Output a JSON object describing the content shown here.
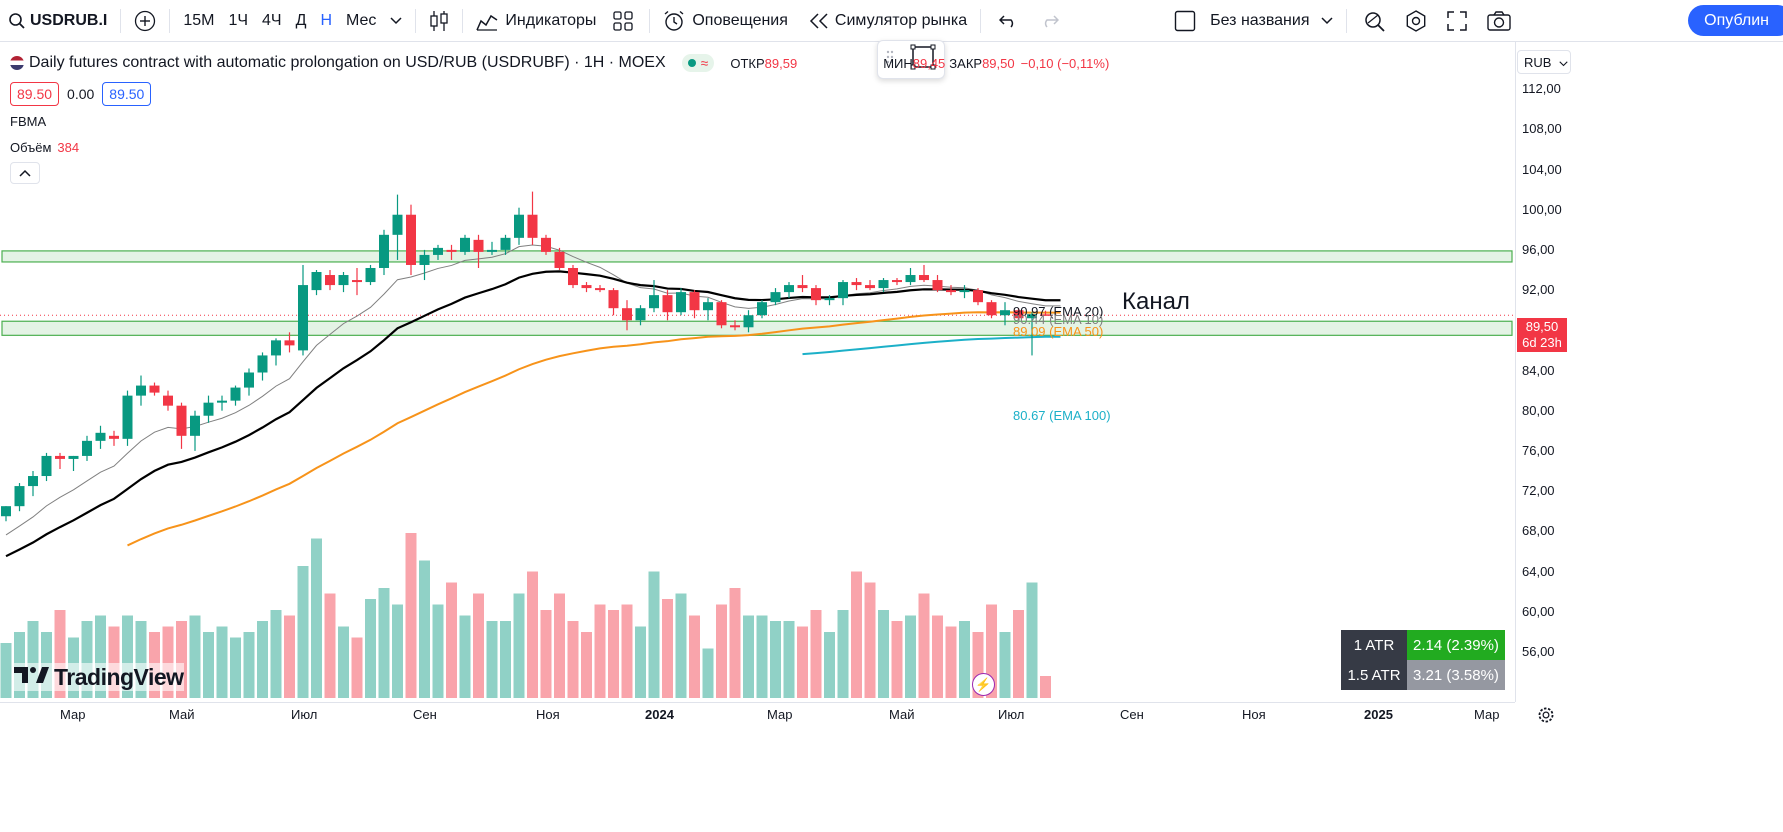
{
  "toolbar": {
    "symbol": "USDRUB.I",
    "intervals": [
      "15М",
      "1Ч",
      "4Ч",
      "Д",
      "Н",
      "Мес"
    ],
    "active_interval": "Н",
    "indicators_label": "Индикаторы",
    "alerts_label": "Оповещения",
    "replay_label": "Симулятор рынка",
    "layout_name": "Без названия",
    "publish_label": "Опублин"
  },
  "legend": {
    "title": "Daily futures contract with automatic prolongation on USD/RUB (USDRUBF) · 1Н · MOEX",
    "open_label": "ОТКР",
    "open_value": "89,59",
    "low_label": "МИН",
    "low_value": "89,45",
    "close_label": "ЗАКР",
    "close_value": "89,50",
    "change": "−0,10 (−0,11%)",
    "bid": "89.50",
    "spread": "0.00",
    "ask": "89.50",
    "indicator_1": "FBMA",
    "volume_label": "Объём",
    "volume_value": "384"
  },
  "price_axis": {
    "currency": "RUB",
    "ticks": [
      "112,00",
      "108,00",
      "104,00",
      "100,00",
      "96,00",
      "92,00",
      "88,00",
      "84,00",
      "80,00",
      "76,00",
      "72,00",
      "68,00",
      "64,00",
      "60,00",
      "56,00"
    ],
    "current_price": "89,50",
    "countdown": "6d 23h"
  },
  "time_axis": {
    "ticks": [
      {
        "label": "Мар",
        "bold": false
      },
      {
        "label": "Май",
        "bold": false
      },
      {
        "label": "Июл",
        "bold": false
      },
      {
        "label": "Сен",
        "bold": false
      },
      {
        "label": "Ноя",
        "bold": false
      },
      {
        "label": "2024",
        "bold": true
      },
      {
        "label": "Мар",
        "bold": false
      },
      {
        "label": "Май",
        "bold": false
      },
      {
        "label": "Июл",
        "bold": false
      },
      {
        "label": "Сен",
        "bold": false
      },
      {
        "label": "Ноя",
        "bold": false
      },
      {
        "label": "2025",
        "bold": true
      },
      {
        "label": "Мар",
        "bold": false
      }
    ]
  },
  "annotations": {
    "channel_text": "Канал"
  },
  "ema_labels": {
    "ema20": "90.97 (EMA 20)",
    "ema10": "90.44 (EMA 10)",
    "ema50": "89.09 (EMA 50)",
    "ema100": "80.67 (EMA 100)"
  },
  "atr": {
    "rows": [
      {
        "label": "1 ATR",
        "value": "2.14 (2.39%)"
      },
      {
        "label": "1.5 ATR",
        "value": "3.21 (3.58%)"
      }
    ]
  },
  "brand": {
    "name": "TradingView"
  },
  "colors": {
    "up": "#089981",
    "down": "#f23645",
    "ema10": "#808080",
    "ema20": "#000000",
    "ema50": "#f7931a",
    "ema100": "#1cb0c8",
    "zone": "#4caf50"
  },
  "chart_data": {
    "type": "candlestick",
    "title": "USDRUBF 1W",
    "ylim": [
      54,
      114
    ],
    "zones": [
      [
        94.8,
        95.9
      ],
      [
        87.5,
        88.9
      ]
    ],
    "candles": [
      [
        69.5,
        70.5,
        69.0,
        70.5,
        10
      ],
      [
        70.5,
        72.8,
        70.0,
        72.5,
        12
      ],
      [
        72.5,
        74.0,
        71.5,
        73.5,
        14
      ],
      [
        73.5,
        75.8,
        73.0,
        75.5,
        12
      ],
      [
        75.5,
        75.8,
        74.2,
        75.2,
        16
      ],
      [
        75.2,
        75.5,
        74.0,
        75.5,
        11
      ],
      [
        75.5,
        77.5,
        75.0,
        77.0,
        14
      ],
      [
        77.0,
        78.5,
        76.2,
        77.8,
        15
      ],
      [
        77.5,
        78.0,
        76.5,
        77.2,
        13
      ],
      [
        77.2,
        82.0,
        76.5,
        81.5,
        15
      ],
      [
        81.5,
        83.5,
        80.5,
        82.5,
        14
      ],
      [
        82.5,
        82.8,
        81.5,
        81.8,
        12
      ],
      [
        81.5,
        82.0,
        80.0,
        80.5,
        13
      ],
      [
        80.5,
        80.8,
        76.2,
        77.5,
        14
      ],
      [
        77.5,
        80.0,
        76.0,
        79.5,
        15
      ],
      [
        79.5,
        81.5,
        78.8,
        80.8,
        12
      ],
      [
        80.8,
        81.5,
        80.0,
        81.0,
        13
      ],
      [
        81.0,
        82.5,
        80.5,
        82.3,
        11
      ],
      [
        82.3,
        84.2,
        81.5,
        83.8,
        12
      ],
      [
        83.8,
        85.8,
        83.0,
        85.5,
        14
      ],
      [
        85.5,
        87.2,
        84.5,
        87.0,
        16
      ],
      [
        87.0,
        87.8,
        85.8,
        86.5,
        15
      ],
      [
        86.0,
        94.5,
        85.5,
        92.5,
        24
      ],
      [
        92.0,
        94.0,
        91.5,
        93.8,
        29
      ],
      [
        93.5,
        94.0,
        92.0,
        92.5,
        19
      ],
      [
        92.5,
        93.8,
        91.8,
        93.5,
        13
      ],
      [
        93.0,
        94.2,
        91.5,
        92.8,
        11
      ],
      [
        92.8,
        94.5,
        92.5,
        94.2,
        18
      ],
      [
        94.2,
        98.0,
        93.5,
        97.5,
        20
      ],
      [
        97.5,
        101.5,
        95.0,
        99.5,
        17
      ],
      [
        99.5,
        100.5,
        93.5,
        94.5,
        30
      ],
      [
        94.5,
        96.0,
        93.0,
        95.5,
        25
      ],
      [
        95.5,
        96.5,
        95.0,
        96.2,
        17
      ],
      [
        96.0,
        96.5,
        95.0,
        95.8,
        21
      ],
      [
        95.8,
        97.5,
        95.5,
        97.2,
        15
      ],
      [
        97.0,
        97.5,
        94.2,
        95.8,
        19
      ],
      [
        95.8,
        96.8,
        95.5,
        96.0,
        14
      ],
      [
        96.0,
        97.5,
        95.5,
        97.2,
        14
      ],
      [
        97.2,
        100.2,
        96.5,
        99.5,
        19
      ],
      [
        99.5,
        101.8,
        96.5,
        97.2,
        23
      ],
      [
        97.2,
        97.5,
        95.5,
        95.8,
        16
      ],
      [
        95.8,
        96.2,
        94.0,
        94.2,
        19
      ],
      [
        94.2,
        94.5,
        92.2,
        92.5,
        14
      ],
      [
        92.5,
        92.8,
        91.8,
        92.2,
        12
      ],
      [
        92.2,
        92.5,
        91.8,
        92.0,
        17
      ],
      [
        92.0,
        92.2,
        89.5,
        90.2,
        16
      ],
      [
        90.2,
        91.0,
        88.0,
        89.0,
        17
      ],
      [
        89.0,
        90.5,
        88.5,
        90.2,
        13
      ],
      [
        90.2,
        93.0,
        89.8,
        91.5,
        23
      ],
      [
        91.5,
        92.0,
        89.0,
        89.8,
        18
      ],
      [
        89.8,
        92.2,
        89.5,
        91.8,
        19
      ],
      [
        91.8,
        92.0,
        89.2,
        90.0,
        15
      ],
      [
        90.0,
        91.2,
        89.0,
        90.8,
        9
      ],
      [
        90.8,
        91.0,
        88.2,
        88.5,
        17
      ],
      [
        88.5,
        89.0,
        88.0,
        88.3,
        20
      ],
      [
        88.3,
        90.0,
        87.8,
        89.5,
        15
      ],
      [
        89.5,
        91.0,
        89.2,
        90.8,
        15
      ],
      [
        90.8,
        92.2,
        90.5,
        91.8,
        14
      ],
      [
        91.8,
        92.8,
        91.2,
        92.5,
        14
      ],
      [
        92.5,
        93.5,
        91.8,
        92.2,
        13
      ],
      [
        92.2,
        92.5,
        90.5,
        91.0,
        16
      ],
      [
        91.0,
        91.5,
        90.5,
        91.2,
        12
      ],
      [
        91.2,
        93.0,
        90.5,
        92.8,
        16
      ],
      [
        92.8,
        93.2,
        92.0,
        92.5,
        23
      ],
      [
        92.5,
        93.0,
        92.0,
        92.2,
        21
      ],
      [
        92.2,
        93.2,
        91.8,
        93.0,
        16
      ],
      [
        93.0,
        93.2,
        92.5,
        92.8,
        14
      ],
      [
        92.8,
        94.2,
        92.5,
        93.5,
        15
      ],
      [
        93.5,
        94.5,
        92.8,
        93.0,
        19
      ],
      [
        93.0,
        93.5,
        91.8,
        92.0,
        15
      ],
      [
        92.0,
        92.5,
        91.5,
        91.8,
        13
      ],
      [
        91.8,
        92.5,
        91.2,
        92.0,
        14
      ],
      [
        92.0,
        92.2,
        90.5,
        90.8,
        12
      ],
      [
        90.8,
        91.0,
        89.2,
        89.5,
        17
      ],
      [
        89.5,
        90.8,
        88.5,
        90.0,
        12
      ],
      [
        90.0,
        90.2,
        89.0,
        89.2,
        16
      ],
      [
        89.2,
        89.8,
        85.5,
        89.6,
        21
      ],
      [
        89.59,
        89.95,
        89.45,
        89.5,
        4
      ]
    ]
  }
}
